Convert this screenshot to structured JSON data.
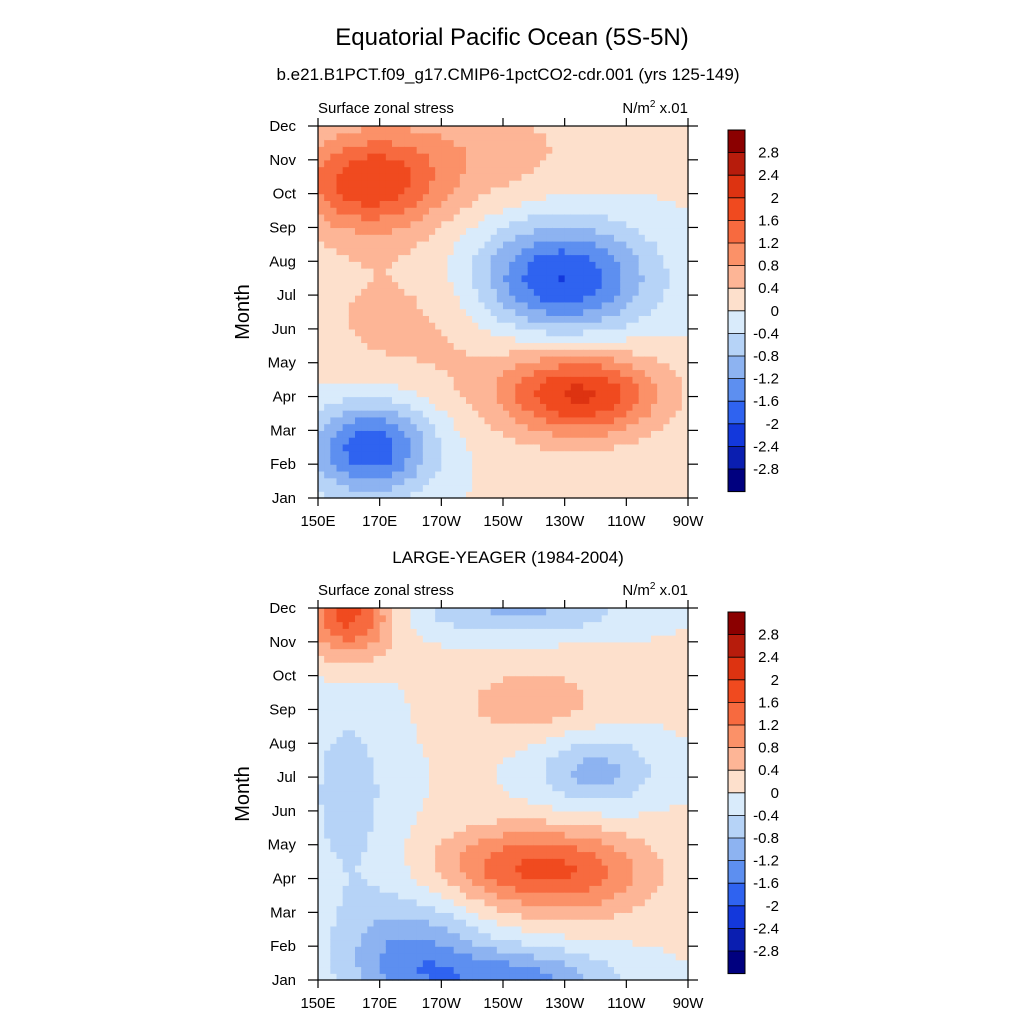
{
  "figure": {
    "title": "Equatorial Pacific Ocean (5S-5N)"
  },
  "colorscale": {
    "levels": [
      "2.8",
      "2.4",
      "2",
      "1.6",
      "1.2",
      "0.8",
      "0.4",
      "0",
      "-0.4",
      "-0.8",
      "-1.2",
      "-1.6",
      "-2",
      "-2.4",
      "-2.8"
    ],
    "colors": [
      "#8b0000",
      "#b71c0c",
      "#dd3311",
      "#f04a1f",
      "#f76a3f",
      "#fb9168",
      "#fdb596",
      "#fde0cc",
      "#d9ebfb",
      "#b6d3f7",
      "#8db3f1",
      "#5d8ff0",
      "#2f63f0",
      "#1338dc",
      "#0a1eb0",
      "#00007f"
    ]
  },
  "chart_data": [
    {
      "type": "heatmap",
      "title": "b.e21.B1PCT.f09_g17.CMIP6-1pctCO2-cdr.001 (yrs 125-149)",
      "left_label": "Surface zonal stress",
      "units_base": "N/m",
      "units_exp": "2",
      "units_scale": "x.01",
      "xlabel": "",
      "ylabel": "Month",
      "xlim": [
        150,
        270
      ],
      "ylim": [
        1,
        12
      ],
      "x_ticks": [
        150,
        170,
        190,
        210,
        230,
        250,
        270
      ],
      "x_tick_labels": [
        "150E",
        "170E",
        "170W",
        "150W",
        "130W",
        "110W",
        "90W"
      ],
      "y_ticks": [
        1,
        2,
        3,
        4,
        5,
        6,
        7,
        8,
        9,
        10,
        11,
        12
      ],
      "y_tick_labels": [
        "Jan",
        "Feb",
        "Mar",
        "Apr",
        "May",
        "Jun",
        "Jul",
        "Aug",
        "Sep",
        "Oct",
        "Nov",
        "Dec"
      ],
      "field_features": [
        {
          "lon": 167,
          "month": 2.5,
          "value": -2.0,
          "sx": 14,
          "sy": 1.0
        },
        {
          "lon": 228,
          "month": 7.5,
          "value": -2.2,
          "sx": 20,
          "sy": 1.2
        },
        {
          "lon": 235,
          "month": 4.1,
          "value": 2.0,
          "sx": 18,
          "sy": 0.9
        },
        {
          "lon": 166,
          "month": 10.3,
          "value": 1.6,
          "sx": 16,
          "sy": 1.0
        },
        {
          "lon": 195,
          "month": 11.2,
          "value": 0.6,
          "sx": 30,
          "sy": 1.2
        },
        {
          "lon": 185,
          "month": 6.3,
          "value": 0.5,
          "sx": 30,
          "sy": 1.8
        }
      ]
    },
    {
      "type": "heatmap",
      "title": "LARGE-YEAGER (1984-2004)",
      "left_label": "Surface zonal stress",
      "units_base": "N/m",
      "units_exp": "2",
      "units_scale": "x.01",
      "xlabel": "",
      "ylabel": "Month",
      "xlim": [
        150,
        270
      ],
      "ylim": [
        1,
        12
      ],
      "x_ticks": [
        150,
        170,
        190,
        210,
        230,
        250,
        270
      ],
      "x_tick_labels": [
        "150E",
        "170E",
        "170W",
        "150W",
        "130W",
        "110W",
        "90W"
      ],
      "y_ticks": [
        1,
        2,
        3,
        4,
        5,
        6,
        7,
        8,
        9,
        10,
        11,
        12
      ],
      "y_tick_labels": [
        "Jan",
        "Feb",
        "Mar",
        "Apr",
        "May",
        "Jun",
        "Jul",
        "Aug",
        "Sep",
        "Oct",
        "Nov",
        "Dec"
      ],
      "field_features": [
        {
          "lon": 160,
          "month": 11.8,
          "value": 1.8,
          "sx": 10,
          "sy": 0.9
        },
        {
          "lon": 233,
          "month": 4.2,
          "value": 1.3,
          "sx": 18,
          "sy": 0.9
        },
        {
          "lon": 208,
          "month": 4.4,
          "value": 0.9,
          "sx": 16,
          "sy": 0.8
        },
        {
          "lon": 220,
          "month": 9.2,
          "value": 0.6,
          "sx": 18,
          "sy": 0.8
        },
        {
          "lon": 180,
          "month": 1.7,
          "value": -1.3,
          "sx": 16,
          "sy": 1.2
        },
        {
          "lon": 215,
          "month": 1.0,
          "value": -1.4,
          "sx": 22,
          "sy": 0.7
        },
        {
          "lon": 240,
          "month": 7.2,
          "value": -1.0,
          "sx": 14,
          "sy": 0.8
        },
        {
          "lon": 215,
          "month": 11.9,
          "value": -0.9,
          "sx": 25,
          "sy": 0.5
        },
        {
          "lon": 160,
          "month": 6.5,
          "value": -0.6,
          "sx": 12,
          "sy": 2.5
        }
      ]
    }
  ]
}
